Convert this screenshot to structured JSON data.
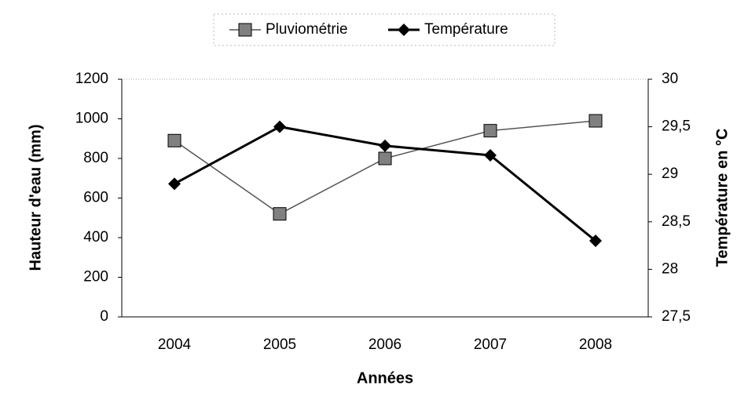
{
  "chart_data": {
    "type": "line",
    "categories": [
      "2004",
      "2005",
      "2006",
      "2007",
      "2008"
    ],
    "series": [
      {
        "name": "Pluviométrie",
        "color": "#808080",
        "marker": "square",
        "values": [
          890,
          520,
          800,
          940,
          990
        ]
      },
      {
        "name": "Température",
        "color": "#000000",
        "marker": "diamond",
        "axis": "y2",
        "values": [
          28.9,
          29.5,
          29.3,
          29.2,
          28.3
        ]
      }
    ],
    "ylim": [
      0,
      1200
    ],
    "yticks": [
      0,
      200,
      400,
      600,
      800,
      1000,
      1200
    ],
    "y2lim": [
      27.5,
      30
    ],
    "y2ticks": [
      {
        "value": 27.5,
        "label": "27,5"
      },
      28,
      {
        "value": 28.5,
        "label": "28,5"
      },
      29,
      {
        "value": 29.5,
        "label": "29,5"
      },
      30
    ],
    "xlabel": "Années",
    "ylabel": "Hauteur d'eau (mm)",
    "y2label": "Température en °C",
    "legend": "top",
    "grid": false
  }
}
